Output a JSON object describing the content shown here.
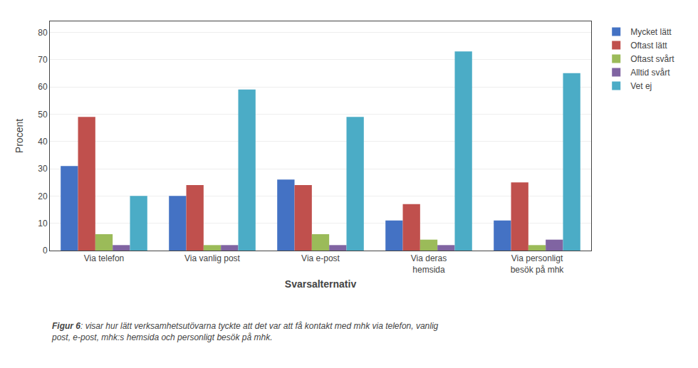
{
  "chart_data": {
    "type": "bar",
    "categories": [
      "Via telefon",
      "Via vanlig post",
      "Via e-post",
      "Via deras\nhemsida",
      "Via personligt\nbesök på mhk"
    ],
    "series": [
      {
        "name": "Mycket lätt",
        "color": "#4472c4",
        "values": [
          31,
          20,
          26,
          11,
          11
        ]
      },
      {
        "name": "Oftast lätt",
        "color": "#c0504d",
        "values": [
          49,
          24,
          24,
          17,
          25
        ]
      },
      {
        "name": "Oftast svårt",
        "color": "#9bbb59",
        "values": [
          6,
          2,
          6,
          4,
          2
        ]
      },
      {
        "name": "Alltid svårt",
        "color": "#8064a2",
        "values": [
          2,
          2,
          2,
          2,
          4
        ]
      },
      {
        "name": "Vet ej",
        "color": "#4bacc6",
        "values": [
          20,
          59,
          49,
          73,
          65
        ]
      }
    ],
    "xlabel": "Svarsalternativ",
    "ylabel": "Procent",
    "ylim": [
      0,
      84
    ],
    "yticks": [
      0,
      10,
      20,
      30,
      40,
      50,
      60,
      70,
      80
    ],
    "grid": true,
    "legend": "upper right",
    "annotations": [
      "Figur 6",
      ": visar hur lätt verksamhetsutövarna tyckte att det var att få kontakt med mhk via telefon, vanlig\npost, e-post, mhk:s hemsida och personligt besök på mhk."
    ]
  }
}
